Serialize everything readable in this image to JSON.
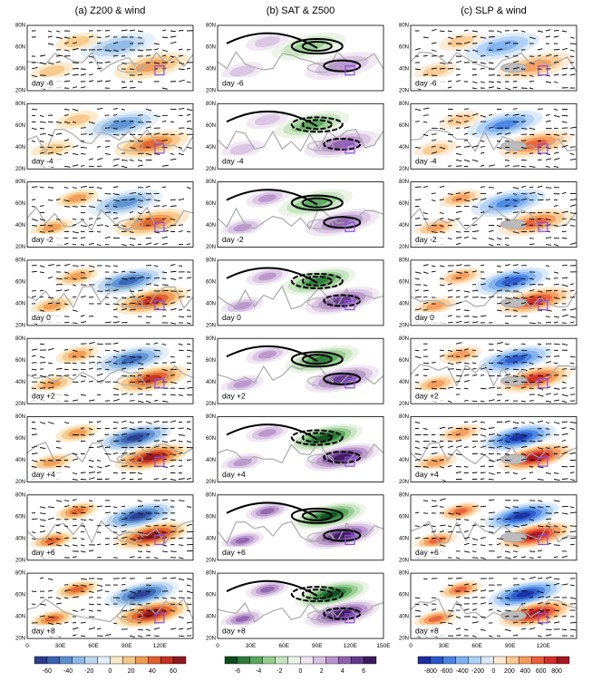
{
  "columns": [
    {
      "title": "(a) Z200 & wind",
      "x_labels": [
        "0",
        "30E",
        "60E",
        "90E",
        "120E"
      ],
      "colorbar": [
        "-60",
        "-40",
        "-20",
        "0",
        "20",
        "40",
        "60"
      ]
    },
    {
      "title": "(b) SAT & Z500",
      "x_labels": [
        "0",
        "30E",
        "60E",
        "90E",
        "120E",
        "150E"
      ],
      "colorbar": [
        "-6",
        "-4",
        "-2",
        "0",
        "2",
        "4",
        "6"
      ]
    },
    {
      "title": "(c) SLP & wind",
      "x_labels": [
        "0",
        "30E",
        "60E",
        "90E",
        "120E"
      ],
      "colorbar": [
        "-800",
        "-600",
        "-400",
        "-200",
        "0",
        "200",
        "400",
        "600",
        "800"
      ]
    }
  ],
  "rows": [
    "day -6",
    "day -4",
    "day -2",
    "day 0",
    "day +2",
    "day +4",
    "day +6",
    "day +8"
  ],
  "lat_labels": [
    "80N",
    "60N",
    "40N",
    "20N"
  ]
}
